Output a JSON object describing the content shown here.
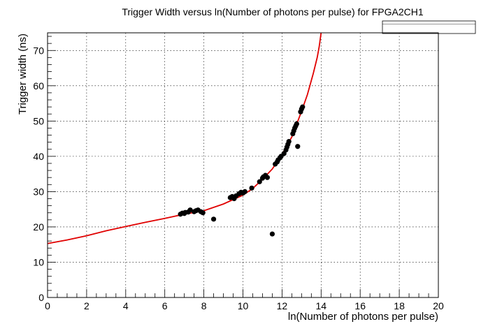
{
  "chart_data": {
    "type": "scatter",
    "title": "Trigger Width versus ln(Number of photons per pulse) for FPGA2CH1",
    "xlabel": "ln(Number of photons per pulse)",
    "ylabel": "Trigger width (ns)",
    "xlim": [
      0,
      20
    ],
    "ylim": [
      0,
      75
    ],
    "x_ticks": [
      "0",
      "2",
      "4",
      "6",
      "8",
      "10",
      "12",
      "14",
      "16",
      "18",
      "20"
    ],
    "y_ticks": [
      "0",
      "10",
      "20",
      "30",
      "40",
      "50",
      "60",
      "70"
    ],
    "grid": true,
    "legend": "none",
    "colors": {
      "points": "#000000",
      "fit": "#e00000"
    },
    "series": [
      {
        "type": "scatter",
        "points": [
          [
            6.8,
            23.6
          ],
          [
            6.9,
            23.9
          ],
          [
            7.0,
            23.8
          ],
          [
            7.05,
            24.1
          ],
          [
            7.2,
            24.2
          ],
          [
            7.3,
            24.8
          ],
          [
            7.5,
            24.3
          ],
          [
            7.6,
            24.6
          ],
          [
            7.7,
            24.8
          ],
          [
            7.85,
            24.3
          ],
          [
            7.95,
            24.0
          ],
          [
            8.5,
            22.2
          ],
          [
            9.35,
            28.3
          ],
          [
            9.45,
            28.6
          ],
          [
            9.55,
            28.0
          ],
          [
            9.65,
            28.8
          ],
          [
            9.8,
            29.4
          ],
          [
            9.9,
            29.8
          ],
          [
            10.0,
            29.6
          ],
          [
            10.1,
            30.0
          ],
          [
            10.45,
            31.0
          ],
          [
            10.85,
            32.8
          ],
          [
            11.0,
            33.8
          ],
          [
            11.05,
            34.2
          ],
          [
            11.15,
            34.6
          ],
          [
            11.25,
            34.0
          ],
          [
            11.5,
            18.0
          ],
          [
            11.65,
            37.8
          ],
          [
            11.75,
            38.4
          ],
          [
            11.8,
            39.0
          ],
          [
            11.9,
            39.6
          ],
          [
            11.95,
            40.0
          ],
          [
            12.1,
            40.8
          ],
          [
            12.2,
            41.8
          ],
          [
            12.25,
            42.6
          ],
          [
            12.3,
            43.4
          ],
          [
            12.35,
            44.2
          ],
          [
            12.55,
            46.4
          ],
          [
            12.6,
            47.2
          ],
          [
            12.65,
            48.0
          ],
          [
            12.7,
            48.6
          ],
          [
            12.75,
            49.2
          ],
          [
            12.8,
            42.8
          ],
          [
            12.95,
            52.6
          ],
          [
            13.0,
            53.4
          ],
          [
            13.05,
            54.0
          ]
        ]
      },
      {
        "type": "line",
        "x": [
          0,
          1,
          2,
          3,
          4,
          5,
          6,
          7,
          8,
          9,
          10,
          10.5,
          11,
          11.5,
          12,
          12.5,
          13,
          13.3,
          13.6,
          13.8,
          13.9,
          14.0
        ],
        "y": [
          15.3,
          16.3,
          17.5,
          18.9,
          20.1,
          21.3,
          22.4,
          23.6,
          24.6,
          26.5,
          29.0,
          30.9,
          33.5,
          36.4,
          40.5,
          45.5,
          52.8,
          57.5,
          63.5,
          68.0,
          71.0,
          75.0
        ]
      }
    ]
  }
}
